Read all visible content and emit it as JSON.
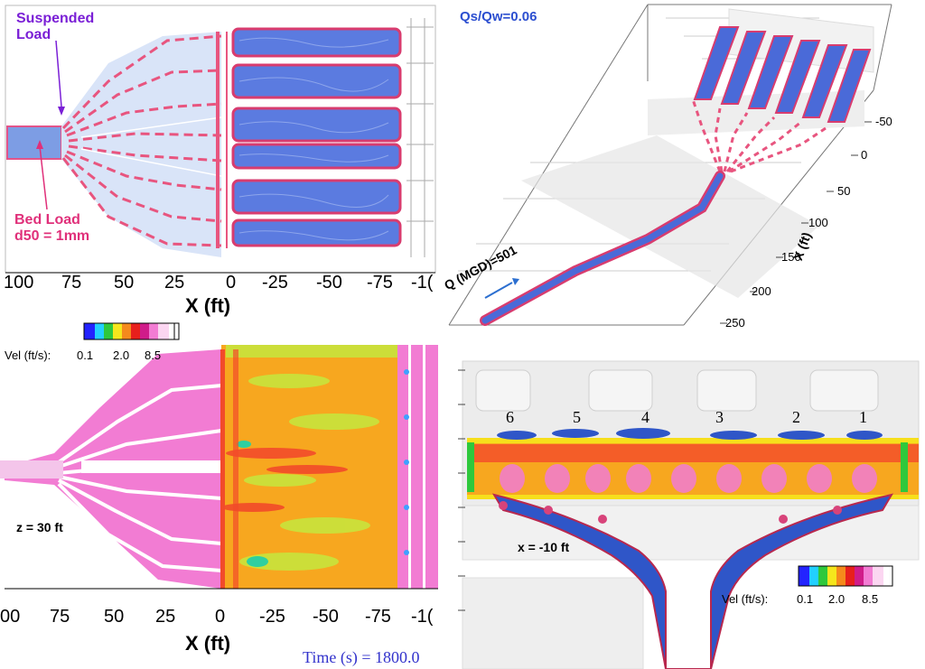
{
  "top_left": {
    "suspended_label": [
      "Suspended",
      "Load"
    ],
    "bed_label": [
      "Bed Load",
      "d50 = 1mm"
    ],
    "axis_ticks": [
      "100",
      "75",
      "50",
      "25",
      "0",
      "-25",
      "-50",
      "-75",
      "-1("
    ],
    "axis_title": "X (ft)"
  },
  "top_right": {
    "ratio_label": "Qs/Qw=0.06",
    "flow_label": "Q (MGD)=501",
    "axis_ticks": [
      "-50",
      "0",
      "50",
      "100",
      "150",
      "200",
      "250"
    ],
    "axis_title": "X (ft)"
  },
  "bottom_left": {
    "colorbar_title": "Vel (ft/s):",
    "colorbar_ticks": [
      "0.1",
      "2.0",
      "8.5"
    ],
    "z_label": "z = 30 ft",
    "axis_ticks": [
      "00",
      "75",
      "50",
      "25",
      "0",
      "-25",
      "-50",
      "-75",
      "-1("
    ],
    "axis_title": "X (ft)",
    "time_label": "Time (s) = 1800.0"
  },
  "bottom_right": {
    "basin_numbers": [
      "6",
      "5",
      "4",
      "3",
      "2",
      "1"
    ],
    "x_label": "x = -10 ft",
    "colorbar_title": "Vel (ft/s):",
    "colorbar_ticks": [
      "0.1",
      "2.0",
      "8.5"
    ]
  },
  "colors": {
    "suspended": "#7a1fd6",
    "bed": "#e0307a",
    "blue_iso": "#3f5fd8",
    "pink_iso": "#e8557f",
    "orange_field": "#f7a71f",
    "pink_field": "#f27cd3",
    "ratio_text": "#2c4fd0"
  }
}
